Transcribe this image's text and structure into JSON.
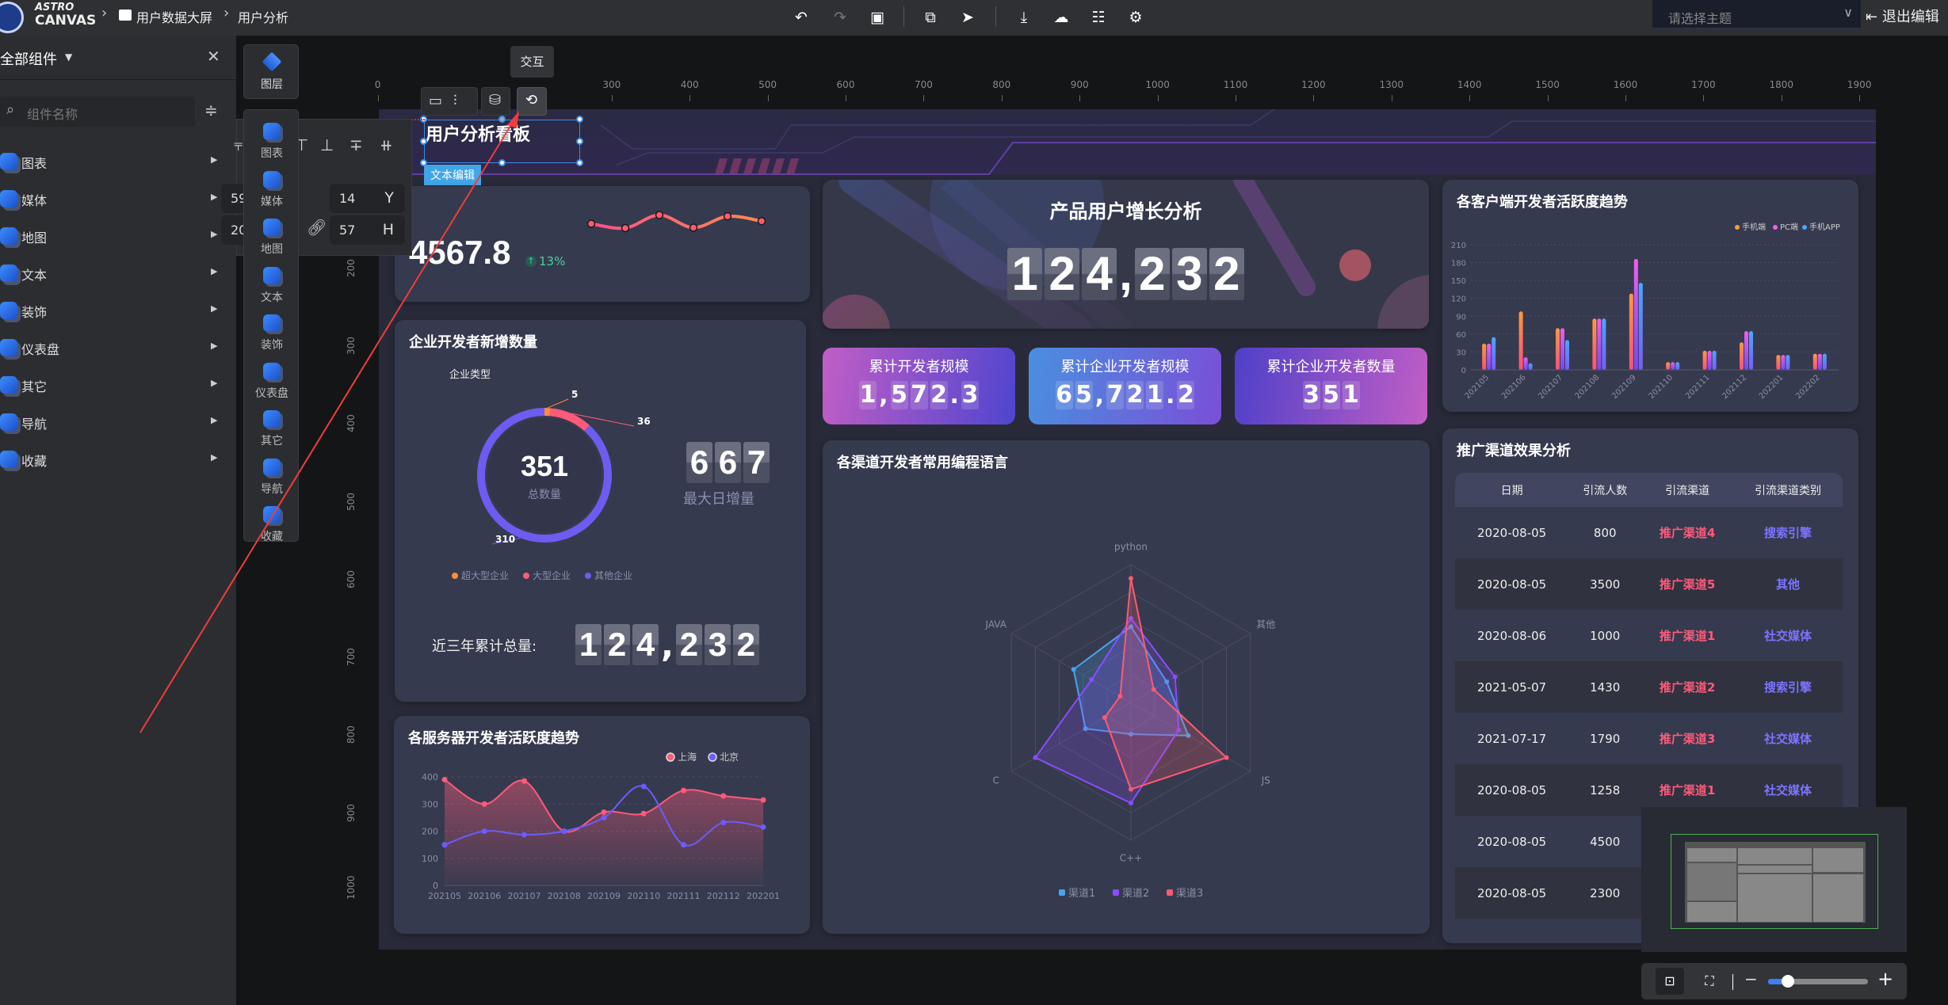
{
  "topbar": {
    "logo_line1": "ASTRO",
    "logo_line2": "CANVAS",
    "breadcrumb": [
      "用户数据大屏",
      "用户分析"
    ],
    "tools": [
      "undo-icon",
      "redo-icon",
      "save-icon",
      "preview-icon",
      "publish-icon",
      "download-icon",
      "upload-cloud-icon",
      "settings-sliders-icon",
      "page-settings-icon"
    ],
    "theme_placeholder": "请选择主题",
    "exit_label": "退出编辑"
  },
  "left_panel": {
    "title": "全部组件",
    "search_placeholder": "组件名称",
    "categories": [
      "图表",
      "媒体",
      "地图",
      "文本",
      "装饰",
      "仪表盘",
      "其它",
      "导航",
      "收藏"
    ]
  },
  "float_toolbar": {
    "layers_label": "图层",
    "items": [
      "图表",
      "媒体",
      "地图",
      "文本",
      "装饰",
      "仪表盘",
      "其它",
      "导航",
      "收藏"
    ]
  },
  "property_panel": {
    "y_value": "14",
    "y_label": "Y",
    "h_value": "57",
    "h_label": "H",
    "partial_values": [
      "59",
      "20"
    ]
  },
  "rulers": {
    "top": [
      "0",
      "300",
      "400",
      "500",
      "600",
      "700",
      "800",
      "900",
      "1000",
      "1100",
      "1200",
      "1300",
      "1400",
      "1500",
      "1600",
      "1700",
      "1800",
      "1900"
    ],
    "left": [
      "200",
      "300",
      "400",
      "500",
      "600",
      "700",
      "800",
      "900",
      "1000"
    ]
  },
  "selection": {
    "tooltip": "交互",
    "edit_tag": "文本编辑"
  },
  "dashboard": {
    "title": "用户分析看板",
    "kpi": {
      "value": "4567.8",
      "change": "13%",
      "trend": "up"
    },
    "growth": {
      "title": "产品用户增长分析",
      "value": "124, 232"
    },
    "stats": [
      {
        "title": "累计开发者规模",
        "value": "1,572.3"
      },
      {
        "title": "累计企业开发者规模",
        "value": "65,721.2"
      },
      {
        "title": "累计企业开发者数量",
        "value": "351"
      }
    ],
    "enterprise": {
      "title": "企业开发者新增数量",
      "chart_title": "企业类型",
      "total": "351",
      "total_label": "总数量",
      "max_daily": "667",
      "max_daily_label": "最大日增量",
      "three_year_label": "近三年累计总量:",
      "three_year_value": "124,232"
    },
    "server_title": "各服务器开发者活跃度趋势",
    "radar_title": "各渠道开发者常用编程语言",
    "client_title": "各客户端开发者活跃度趋势",
    "table": {
      "title": "推广渠道效果分析",
      "columns": [
        "日期",
        "引流人数",
        "引流渠道",
        "引流渠道类别"
      ],
      "rows": [
        [
          "2020-08-05",
          "800",
          "推广渠道4",
          "搜索引擎"
        ],
        [
          "2020-08-05",
          "3500",
          "推广渠道5",
          "其他"
        ],
        [
          "2020-08-06",
          "1000",
          "推广渠道1",
          "社交媒体"
        ],
        [
          "2021-05-07",
          "1430",
          "推广渠道2",
          "搜索引擎"
        ],
        [
          "2021-07-17",
          "1790",
          "推广渠道3",
          "社交媒体"
        ],
        [
          "2020-08-05",
          "1258",
          "推广渠道1",
          "社交媒体"
        ],
        [
          "2020-08-05",
          "4500",
          "",
          ""
        ],
        [
          "2020-08-05",
          "2300",
          "",
          ""
        ]
      ]
    }
  },
  "minimap": {
    "zoom_fraction": 0.2
  },
  "chart_data": [
    {
      "id": "kpi-sparkline",
      "type": "line",
      "values": [
        30,
        20,
        50,
        21,
        47,
        36
      ],
      "colors": [
        "#ff4f8b",
        "#ff8a50"
      ]
    },
    {
      "id": "enterprise-donut",
      "type": "pie",
      "title": "企业类型",
      "categories": [
        "超大型企业",
        "大型企业",
        "其他企业"
      ],
      "values": [
        5,
        36,
        310
      ],
      "colors": [
        "#ff8c3a",
        "#ff5a78",
        "#6c5cf0"
      ],
      "legend": "bottom"
    },
    {
      "id": "server-trend",
      "type": "area",
      "categories": [
        "202105",
        "202106",
        "202107",
        "202108",
        "202109",
        "202110",
        "202111",
        "202112",
        "202201"
      ],
      "series": [
        {
          "name": "上海",
          "values": [
            390,
            300,
            385,
            200,
            270,
            265,
            350,
            330,
            315
          ],
          "color": "#ff5a7a"
        },
        {
          "name": "北京",
          "values": [
            150,
            200,
            187,
            200,
            250,
            365,
            150,
            232,
            215
          ],
          "color": "#6b5cff"
        }
      ],
      "ylim": [
        0,
        400
      ],
      "yticks": [
        0,
        100,
        200,
        300,
        400
      ],
      "grid": true,
      "legend": "top-right"
    },
    {
      "id": "language-radar",
      "type": "radar",
      "indicators": [
        "python",
        "其他",
        "JS",
        "C++",
        "C",
        "JAVA"
      ],
      "max": 100,
      "series": [
        {
          "name": "渠道1",
          "values": [
            55,
            30,
            48,
            23,
            38,
            48
          ],
          "color": "#4aa3f0"
        },
        {
          "name": "渠道2",
          "values": [
            61,
            37,
            40,
            73,
            80,
            33
          ],
          "color": "#8a4cff"
        },
        {
          "name": "渠道3",
          "values": [
            90,
            19,
            80,
            63,
            22,
            9
          ],
          "color": "#ff5a72"
        }
      ],
      "legend": "bottom"
    },
    {
      "id": "client-trend",
      "type": "bar",
      "categories": [
        "202105",
        "202106",
        "202107",
        "202108",
        "202109",
        "202110",
        "202111",
        "202112",
        "202201",
        "202202"
      ],
      "series": [
        {
          "name": "手机端",
          "values": [
            44,
            98,
            70,
            86,
            128,
            13,
            32,
            46,
            25,
            27
          ],
          "colors": [
            "#ff9a3c",
            "#ff4f7b"
          ]
        },
        {
          "name": "PC端",
          "values": [
            44,
            21,
            70,
            86,
            186,
            13,
            32,
            65,
            25,
            27
          ],
          "colors": [
            "#f45cf2",
            "#6d4cf5"
          ]
        },
        {
          "name": "手机APP",
          "values": [
            55,
            11,
            50,
            86,
            146,
            13,
            32,
            65,
            25,
            27
          ],
          "colors": [
            "#4aa8ff",
            "#7a5cf5"
          ]
        }
      ],
      "ylim": [
        0,
        210
      ],
      "yticks": [
        0,
        30,
        60,
        90,
        120,
        150,
        180,
        210
      ],
      "grid": true,
      "legend": "top-right"
    }
  ]
}
